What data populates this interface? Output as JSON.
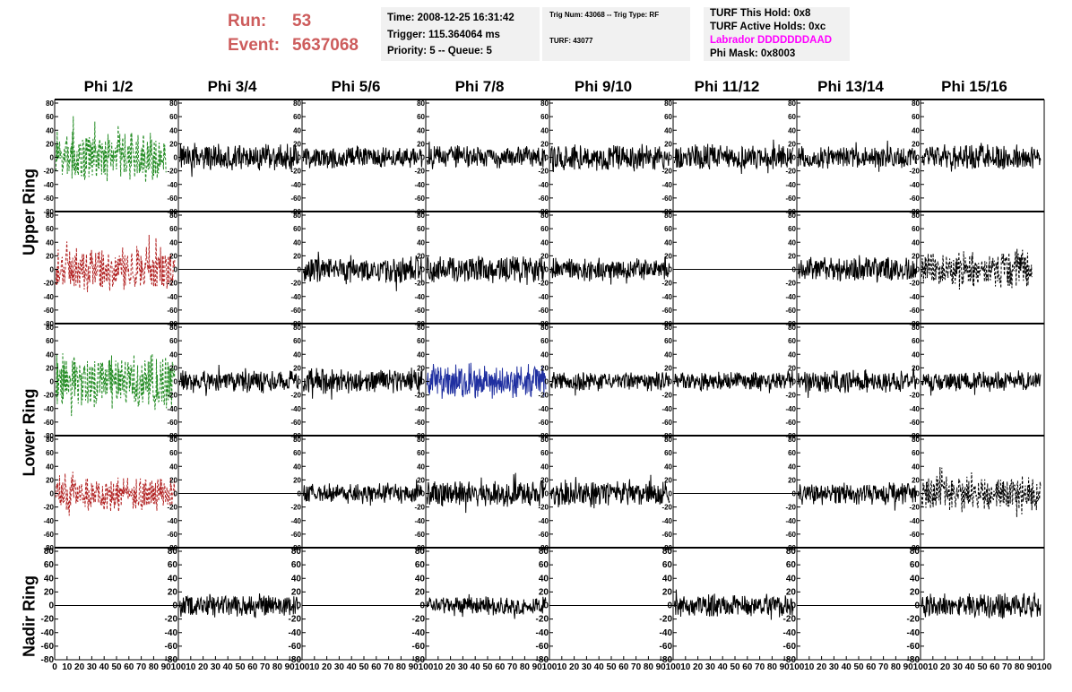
{
  "header": {
    "run_label": "Run:",
    "run_value": "53",
    "event_label": "Event:",
    "event_value": "5637068",
    "time": "Time: 2008-12-25 16:31:42",
    "trigger": "Trigger: 115.364064 ms",
    "priority": "Priority: 5 -- Queue: 5",
    "trig_num": "Trig Num: 43068 -- Trig Type: RF",
    "turf": "TURF: 43077",
    "turf_hold": "TURF This Hold: 0x8",
    "turf_active": "TURF Active Holds: 0xc",
    "labrador": "Labrador DDDDDDDAAD",
    "phi_mask": "Phi Mask: 0x8003"
  },
  "columns": [
    "Phi 1/2",
    "Phi 3/4",
    "Phi 5/6",
    "Phi 7/8",
    "Phi 9/10",
    "Phi 11/12",
    "Phi 13/14",
    "Phi 15/16"
  ],
  "rings": [
    "Upper Ring",
    "Lower Ring",
    "Nadir Ring"
  ],
  "colors": {
    "green": "#228b22",
    "red": "#b22222",
    "blue": "#1f2fa0",
    "black": "#000000",
    "header_red": "#cd5c5c",
    "magenta": "#ff00ff"
  },
  "chart_data": {
    "type": "line",
    "xlim": [
      0,
      100
    ],
    "ylim": [
      -80,
      80
    ],
    "y_ticks": [
      "80",
      "60",
      "40",
      "20",
      "0",
      "-20",
      "-40",
      "-60",
      "-80"
    ],
    "x_ticks": [
      "0",
      "10",
      "20",
      "30",
      "40",
      "50",
      "60",
      "70",
      "80",
      "90",
      "100"
    ],
    "grid": false,
    "rows": [
      {
        "ring": "Upper Ring",
        "waves": [
          {
            "style": "green-dash",
            "amp": 40,
            "xend": 90
          },
          {
            "style": "black",
            "amp": 22,
            "xend": 97
          },
          {
            "style": "black",
            "amp": 18,
            "xend": 97
          },
          {
            "style": "black",
            "amp": 18,
            "xend": 97
          },
          {
            "style": "black",
            "amp": 22,
            "xend": 97
          },
          {
            "style": "black",
            "amp": 20,
            "xend": 97
          },
          {
            "style": "black",
            "amp": 18,
            "xend": 97
          },
          {
            "style": "black",
            "amp": 22,
            "xend": 97
          }
        ]
      },
      {
        "ring": "Upper Ring",
        "waves": [
          {
            "style": "red-dash",
            "amp": 36,
            "xend": 97
          },
          {
            "style": "flat",
            "amp": 0,
            "xend": 100
          },
          {
            "style": "black",
            "amp": 22,
            "xend": 97
          },
          {
            "style": "black",
            "amp": 22,
            "xend": 97
          },
          {
            "style": "black",
            "amp": 18,
            "xend": 97
          },
          {
            "style": "flat",
            "amp": 0,
            "xend": 100
          },
          {
            "style": "black",
            "amp": 20,
            "xend": 97
          },
          {
            "style": "black-dash",
            "amp": 30,
            "xend": 90
          }
        ]
      },
      {
        "ring": "Lower Ring",
        "waves": [
          {
            "style": "green-dash",
            "amp": 45,
            "xend": 97
          },
          {
            "style": "black",
            "amp": 18,
            "xend": 97
          },
          {
            "style": "black",
            "amp": 20,
            "xend": 97
          },
          {
            "style": "blue",
            "amp": 28,
            "xend": 97
          },
          {
            "style": "black",
            "amp": 16,
            "xend": 97
          },
          {
            "style": "black",
            "amp": 16,
            "xend": 97
          },
          {
            "style": "black",
            "amp": 18,
            "xend": 97
          },
          {
            "style": "black",
            "amp": 16,
            "xend": 97
          }
        ]
      },
      {
        "ring": "Lower Ring",
        "waves": [
          {
            "style": "red-dash",
            "amp": 28,
            "xend": 97
          },
          {
            "style": "flat",
            "amp": 0,
            "xend": 100
          },
          {
            "style": "black",
            "amp": 16,
            "xend": 97
          },
          {
            "style": "black",
            "amp": 22,
            "xend": 97
          },
          {
            "style": "black",
            "amp": 20,
            "xend": 97
          },
          {
            "style": "flat",
            "amp": 0,
            "xend": 100
          },
          {
            "style": "black",
            "amp": 18,
            "xend": 97
          },
          {
            "style": "black-dash",
            "amp": 28,
            "xend": 97
          }
        ]
      },
      {
        "ring": "Nadir Ring",
        "waves": [
          {
            "style": "flat",
            "amp": 0,
            "xend": 100
          },
          {
            "style": "black",
            "amp": 18,
            "xend": 97
          },
          {
            "style": "flat",
            "amp": 0,
            "xend": 100
          },
          {
            "style": "black",
            "amp": 16,
            "xend": 97
          },
          {
            "style": "flat",
            "amp": 0,
            "xend": 100
          },
          {
            "style": "black",
            "amp": 18,
            "xend": 97
          },
          {
            "style": "flat",
            "amp": 0,
            "xend": 100
          },
          {
            "style": "black",
            "amp": 20,
            "xend": 97
          }
        ]
      }
    ]
  }
}
